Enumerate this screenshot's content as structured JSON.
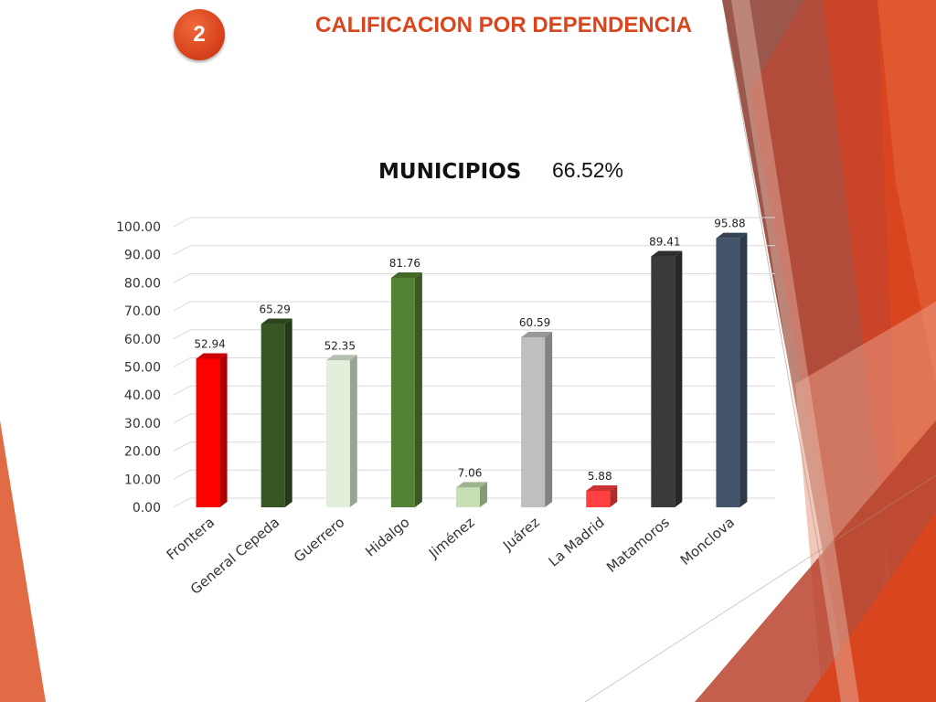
{
  "slide": {
    "number": "2",
    "title": "CALIFICACION POR DEPENDENCIA"
  },
  "colors": {
    "accent": "#d8451e",
    "decor_dark": "#8b3a2e",
    "decor_light": "#e8866a"
  },
  "chart_data": {
    "type": "bar",
    "title": "MUNICIPIOS",
    "annotation": "66.52%",
    "categories": [
      "Frontera",
      "General Cepeda",
      "Guerrero",
      "Hidalgo",
      "Jiménez",
      "Juárez",
      "La Madrid",
      "Matamoros",
      "Monclova"
    ],
    "values": [
      52.94,
      65.29,
      52.35,
      81.76,
      7.06,
      60.59,
      5.88,
      89.41,
      95.88
    ],
    "value_labels": [
      "52.94",
      "65.29",
      "52.35",
      "81.76",
      "7.06",
      "60.59",
      "5.88",
      "89.41",
      "95.88"
    ],
    "bar_colors": [
      "#ff0000",
      "#375623",
      "#e2efda",
      "#548235",
      "#c6e0b4",
      "#bfbfbf",
      "#ff4040",
      "#3a3a3a",
      "#44546a"
    ],
    "ylim": [
      0,
      100
    ],
    "yticks": [
      "0.00",
      "10.00",
      "20.00",
      "30.00",
      "40.00",
      "50.00",
      "60.00",
      "70.00",
      "80.00",
      "90.00",
      "100.00"
    ],
    "grid": true,
    "xlabel": "",
    "ylabel": ""
  }
}
